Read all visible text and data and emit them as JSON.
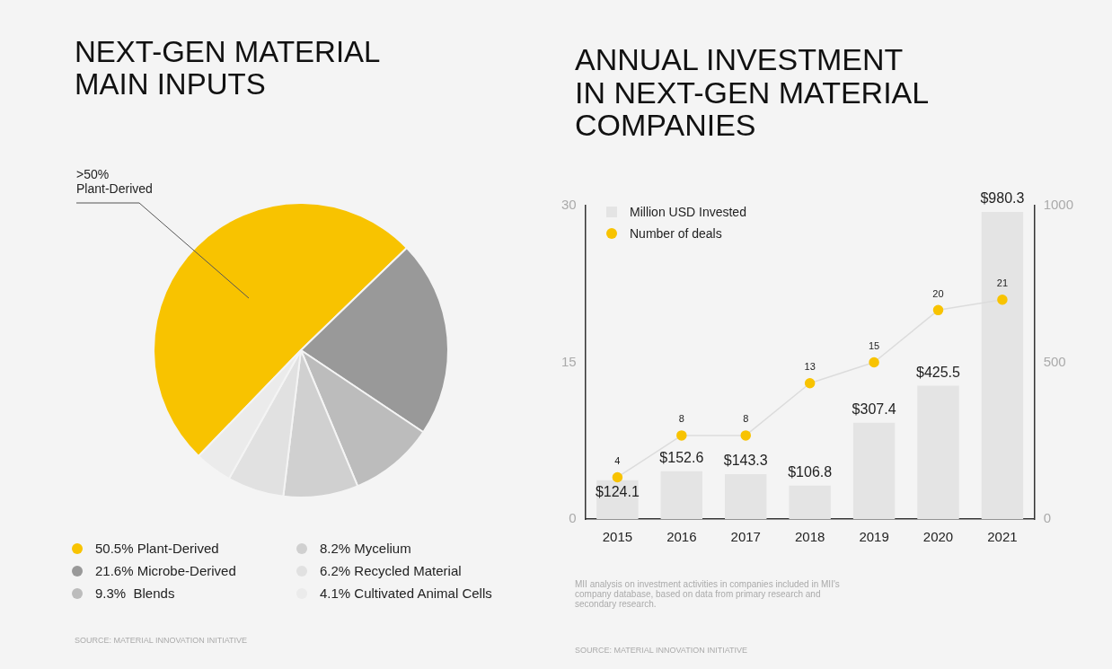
{
  "chart_data": [
    {
      "type": "pie",
      "title": "NEXT-GEN MATERIAL\nMAIN INPUTS",
      "categories": [
        "50.5% Plant-Derived",
        "21.6% Microbe-Derived",
        "9.3%  Blends",
        "8.2% Mycelium",
        "6.2% Recycled Material",
        "4.1% Cultivated Animal Cells"
      ],
      "values": [
        50.5,
        21.6,
        9.3,
        8.2,
        6.2,
        4.1
      ],
      "colors": [
        "#f8c300",
        "#999999",
        "#bcbcbc",
        "#d0d0d0",
        "#e1e1e1",
        "#ebebeb"
      ],
      "legend": "bottom",
      "annotations": [
        {
          "text": ">50% Plant-Derived",
          "x": "50.5% Plant-Derived"
        },
        "SOURCE: MATERIAL INNOVATION INITIATIVE"
      ]
    },
    {
      "type": "bar",
      "title": "ANNUAL INVESTMENT\nIN NEXT-GEN MATERIAL\nCOMPANIES",
      "categories": [
        "2015",
        "2016",
        "2017",
        "2018",
        "2019",
        "2020",
        "2021"
      ],
      "series": [
        {
          "name": "Million USD Invested",
          "type": "bar",
          "axis": "y2",
          "color": "#e4e4e4",
          "values": [
            124.1,
            152.6,
            143.3,
            106.8,
            307.4,
            425.5,
            980.3
          ],
          "value_labels": [
            "$124.1",
            "$152.6",
            "$143.3",
            "$106.8",
            "$307.4",
            "$425.5",
            "$980.3"
          ]
        },
        {
          "name": "Number of deals",
          "type": "line",
          "color": "#f8c300",
          "values": [
            4,
            8,
            8,
            13,
            15,
            20,
            21
          ],
          "value_labels": [
            "4",
            "8",
            "8",
            "13",
            "15",
            "20",
            "21"
          ]
        }
      ],
      "ylim": [
        0,
        30
      ],
      "yticks": [
        0,
        15,
        30
      ],
      "y2lim": [
        0,
        1000
      ],
      "y2ticks": [
        0,
        500,
        1000
      ],
      "marker": "circle",
      "legend": "top left",
      "annotations": [
        "MII analysis on investment activities in companies included in MII's company database, based on data from primary research and secondary research.",
        "SOURCE: MATERIAL INNOVATION INITIATIVE"
      ]
    }
  ]
}
